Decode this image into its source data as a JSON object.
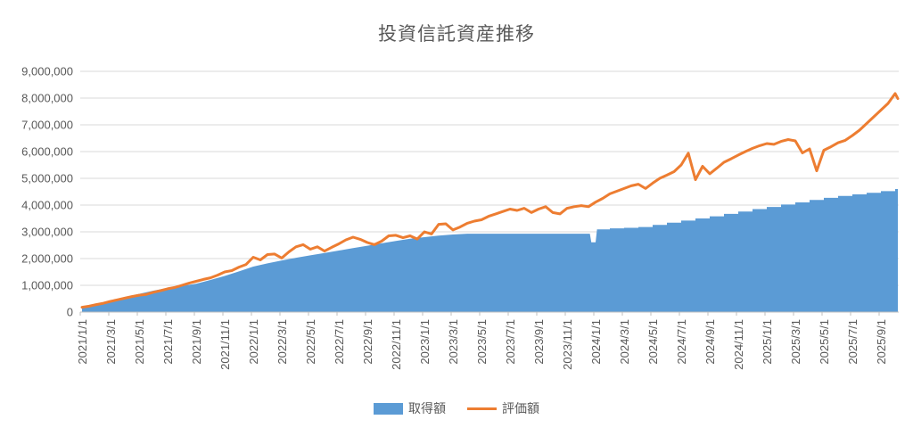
{
  "title": "投資信託資産推移",
  "colors": {
    "background": "#FFFFFF",
    "text": "#595959",
    "gridline": "#D9D9D9",
    "axis": "#BFBFBF",
    "area_blue": "#5B9BD5",
    "line_orange": "#ED7D31"
  },
  "chart_data": {
    "type": "area",
    "title": "投資信託資産推移",
    "xlabel": "",
    "ylabel": "",
    "legend_position": "bottom",
    "grid": true,
    "y_axis": {
      "min": 0,
      "max": 9000000,
      "step": 1000000,
      "tick_labels": [
        "0",
        "1,000,000",
        "2,000,000",
        "3,000,000",
        "4,000,000",
        "5,000,000",
        "6,000,000",
        "7,000,000",
        "8,000,000",
        "9,000,000"
      ]
    },
    "x_axis": {
      "start": "2021/1/1",
      "end": "2025/9/1",
      "tick_labels": [
        "2021/1/1",
        "2021/3/1",
        "2021/5/1",
        "2021/7/1",
        "2021/9/1",
        "2021/11/1",
        "2022/1/1",
        "2022/3/1",
        "2022/5/1",
        "2022/7/1",
        "2022/9/1",
        "2022/11/1",
        "2023/1/1",
        "2023/3/1",
        "2023/5/1",
        "2023/7/1",
        "2023/9/1",
        "2023/11/1",
        "2024/1/1",
        "2024/3/1",
        "2024/5/1",
        "2024/7/1",
        "2024/9/1",
        "2024/11/1",
        "2025/1/1",
        "2025/3/1",
        "2025/5/1",
        "2025/7/1",
        "2025/9/1"
      ]
    },
    "unit": "JPY (values stored in millions of yen, months counted from 2021/1/1)",
    "series": [
      {
        "name": "取得額",
        "type": "area",
        "color": "#5B9BD5",
        "points_month_value_millions": [
          [
            0,
            0.17
          ],
          [
            1,
            0.3
          ],
          [
            2,
            0.43
          ],
          [
            3,
            0.56
          ],
          [
            4,
            0.68
          ],
          [
            5,
            0.8
          ],
          [
            6,
            0.9
          ],
          [
            7,
            0.98
          ],
          [
            8,
            1.06
          ],
          [
            9,
            1.2
          ],
          [
            10,
            1.35
          ],
          [
            11,
            1.52
          ],
          [
            12,
            1.7
          ],
          [
            13,
            1.82
          ],
          [
            14,
            1.93
          ],
          [
            15,
            2.03
          ],
          [
            16,
            2.12
          ],
          [
            17,
            2.21
          ],
          [
            18,
            2.3
          ],
          [
            19,
            2.39
          ],
          [
            20,
            2.48
          ],
          [
            21,
            2.57
          ],
          [
            22,
            2.66
          ],
          [
            23,
            2.74
          ],
          [
            24,
            2.8
          ],
          [
            25,
            2.86
          ],
          [
            26,
            2.9
          ],
          [
            27,
            2.93
          ],
          [
            35.6,
            2.93
          ],
          [
            35.7,
            2.61
          ],
          [
            36.0,
            2.61
          ],
          [
            36.1,
            3.09
          ],
          [
            37,
            3.09
          ],
          [
            37,
            3.13
          ],
          [
            38,
            3.13
          ],
          [
            38,
            3.15
          ],
          [
            39,
            3.15
          ],
          [
            39,
            3.18
          ],
          [
            40,
            3.18
          ],
          [
            40,
            3.26
          ],
          [
            41,
            3.26
          ],
          [
            41,
            3.34
          ],
          [
            42,
            3.34
          ],
          [
            42,
            3.42
          ],
          [
            43,
            3.42
          ],
          [
            43,
            3.5
          ],
          [
            44,
            3.5
          ],
          [
            44,
            3.58
          ],
          [
            45,
            3.58
          ],
          [
            45,
            3.67
          ],
          [
            46,
            3.67
          ],
          [
            46,
            3.76
          ],
          [
            47,
            3.76
          ],
          [
            47,
            3.85
          ],
          [
            48,
            3.85
          ],
          [
            48,
            3.93
          ],
          [
            49,
            3.93
          ],
          [
            49,
            4.02
          ],
          [
            50,
            4.02
          ],
          [
            50,
            4.1
          ],
          [
            51,
            4.1
          ],
          [
            51,
            4.19
          ],
          [
            52,
            4.19
          ],
          [
            52,
            4.27
          ],
          [
            53,
            4.27
          ],
          [
            53,
            4.34
          ],
          [
            54,
            4.34
          ],
          [
            54,
            4.4
          ],
          [
            55,
            4.4
          ],
          [
            55,
            4.46
          ],
          [
            56,
            4.46
          ],
          [
            56,
            4.52
          ],
          [
            57,
            4.52
          ],
          [
            57,
            4.6
          ],
          [
            57.2,
            4.6
          ]
        ]
      },
      {
        "name": "評価額",
        "type": "line",
        "color": "#ED7D31",
        "interval_months": 0.5,
        "values_millions": [
          0.18,
          0.22,
          0.28,
          0.33,
          0.4,
          0.46,
          0.52,
          0.58,
          0.63,
          0.66,
          0.74,
          0.8,
          0.87,
          0.92,
          1.0,
          1.08,
          1.15,
          1.22,
          1.28,
          1.38,
          1.5,
          1.55,
          1.68,
          1.78,
          2.05,
          1.95,
          2.15,
          2.17,
          2.02,
          2.25,
          2.44,
          2.52,
          2.35,
          2.44,
          2.28,
          2.42,
          2.55,
          2.7,
          2.8,
          2.72,
          2.6,
          2.52,
          2.65,
          2.85,
          2.87,
          2.78,
          2.85,
          2.73,
          3.0,
          2.92,
          3.28,
          3.3,
          3.07,
          3.18,
          3.32,
          3.4,
          3.45,
          3.58,
          3.67,
          3.76,
          3.85,
          3.8,
          3.88,
          3.72,
          3.85,
          3.94,
          3.72,
          3.67,
          3.88,
          3.94,
          3.98,
          3.94,
          4.11,
          4.25,
          4.42,
          4.52,
          4.62,
          4.72,
          4.78,
          4.62,
          4.82,
          5.0,
          5.12,
          5.25,
          5.5,
          5.94,
          4.95,
          5.45,
          5.17,
          5.38,
          5.6,
          5.73,
          5.87,
          6.0,
          6.12,
          6.22,
          6.3,
          6.27,
          6.38,
          6.45,
          6.4,
          5.95,
          6.1,
          5.28,
          6.05,
          6.18,
          6.33,
          6.42,
          6.6,
          6.8,
          7.05,
          7.3,
          7.55,
          7.8,
          8.17,
          7.98
        ]
      }
    ]
  },
  "legend": {
    "acquisition_label": "取得額",
    "valuation_label": "評価額"
  }
}
